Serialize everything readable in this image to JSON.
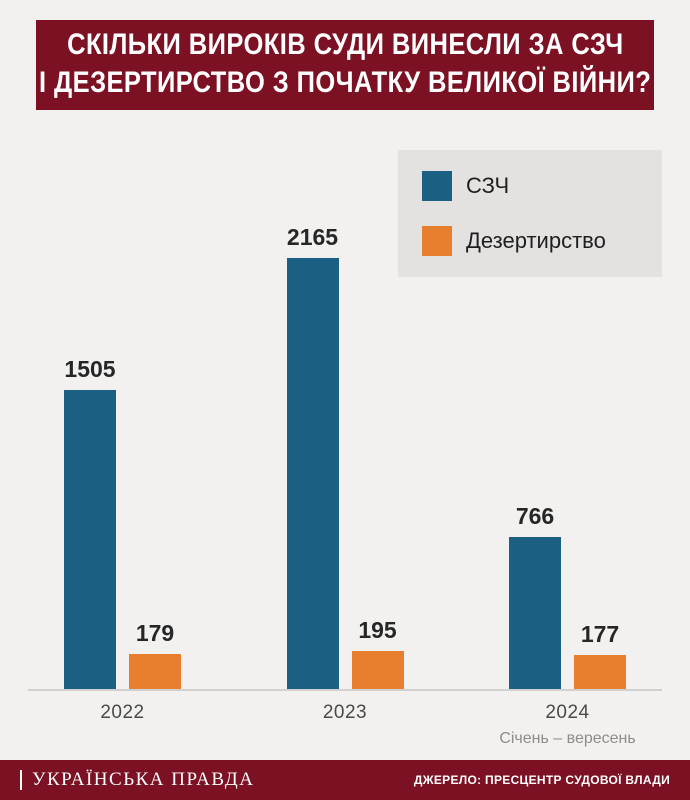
{
  "title": {
    "line1": "СКІЛЬКИ ВИРОКІВ СУДИ ВИНЕСЛИ ЗА СЗЧ",
    "line2": "І ДЕЗЕРТИРСТВО З ПОЧАТКУ ВЕЛИКОЇ ВІЙНИ?"
  },
  "legend": {
    "items": [
      {
        "label": "СЗЧ",
        "color": "#1b5f82"
      },
      {
        "label": "Дезертирство",
        "color": "#e87f2e"
      }
    ]
  },
  "chart_data": {
    "type": "bar",
    "title": "Скільки вироків суди винесли за СЗЧ і дезертирство з початку великої війни?",
    "categories": [
      "2022",
      "2023",
      "2024"
    ],
    "series": [
      {
        "name": "СЗЧ",
        "color": "#1b5f82",
        "values": [
          1505,
          2165,
          766
        ]
      },
      {
        "name": "Дезертирство",
        "color": "#e87f2e",
        "values": [
          179,
          195,
          177
        ]
      }
    ],
    "note_2024": "Січень – вересень",
    "xlabel": "",
    "ylabel": "",
    "ylim": [
      0,
      2165
    ],
    "grid": false,
    "legend_position": "top-right"
  },
  "footer": {
    "brand": "УКРАЇНСЬКА ПРАВДА",
    "source": "ДЖЕРЕЛО: ПРЕСЦЕНТР СУДОВОЇ ВЛАДИ"
  },
  "colors": {
    "brand_red": "#7d1124",
    "szch": "#1b5f82",
    "desertion": "#e87f2e",
    "background": "#f2f1ef",
    "legend_bg": "#e4e2e1"
  }
}
